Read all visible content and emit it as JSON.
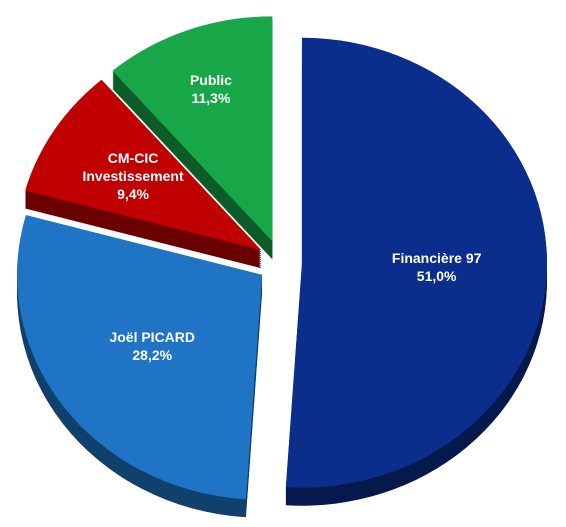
{
  "chart_data": {
    "type": "pie",
    "categories": [
      "Financière 97",
      "Joël PICARD",
      "CM-CIC Investissement",
      "Public"
    ],
    "values": [
      51.0,
      28.2,
      9.4,
      11.3
    ],
    "value_labels": [
      "51,0%",
      "28,2%",
      "9,4%",
      "11,3%"
    ],
    "colors": [
      "#0b2e8c",
      "#1f74c6",
      "#c00000",
      "#17a748"
    ]
  }
}
